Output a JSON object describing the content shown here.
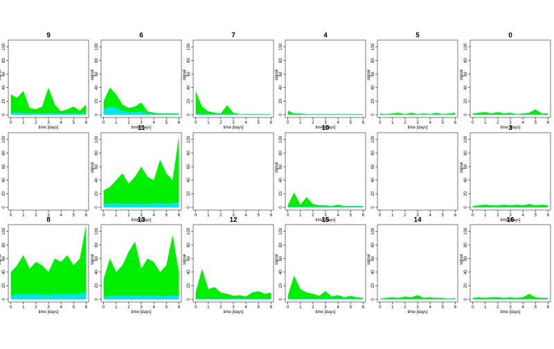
{
  "chart_data": [
    {
      "type": "area",
      "title": "9",
      "xlabel": "time [days]",
      "ylabel": "signal",
      "x": [
        0,
        0.5,
        1,
        1.5,
        2,
        2.5,
        3,
        3.5,
        4,
        4.5,
        5,
        5.5,
        6
      ],
      "series": [
        {
          "color": "#00ee00",
          "values": [
            30,
            25,
            35,
            10,
            8,
            12,
            40,
            15,
            5,
            8,
            12,
            6,
            15
          ]
        },
        {
          "color": "#00e5ee",
          "values": [
            3,
            3,
            3,
            2,
            2,
            2,
            3,
            2,
            2,
            2,
            2,
            2,
            2
          ]
        }
      ],
      "xlim": [
        -0.2,
        6.2
      ],
      "ylim": [
        -4,
        110
      ],
      "xticks": [
        0,
        1,
        2,
        3,
        4,
        5,
        6
      ],
      "yticks": [
        0,
        20,
        40,
        60,
        80,
        100
      ]
    },
    {
      "type": "area",
      "title": "6",
      "xlabel": "time [days]",
      "ylabel": "signal",
      "x": [
        0,
        0.5,
        1,
        1.5,
        2,
        2.5,
        3,
        3.5,
        4,
        4.5,
        5,
        5.5,
        6
      ],
      "series": [
        {
          "color": "#00ee00",
          "values": [
            20,
            40,
            30,
            15,
            10,
            12,
            18,
            5,
            3,
            2,
            2,
            2,
            2
          ]
        },
        {
          "color": "#00e5ee",
          "values": [
            8,
            12,
            10,
            6,
            4,
            4,
            5,
            2,
            1,
            1,
            1,
            1,
            1
          ]
        }
      ],
      "xlim": [
        -0.2,
        6.2
      ],
      "ylim": [
        -4,
        110
      ],
      "xticks": [
        0,
        1,
        2,
        3,
        4,
        5,
        6
      ],
      "yticks": [
        0,
        20,
        40,
        60,
        80,
        100
      ]
    },
    {
      "type": "area",
      "title": "7",
      "xlabel": "time [days]",
      "ylabel": "signal",
      "x": [
        0,
        0.5,
        1,
        1.5,
        2,
        2.5,
        3,
        3.5,
        4,
        4.5,
        5,
        5.5,
        6
      ],
      "series": [
        {
          "color": "#00ee00",
          "values": [
            35,
            12,
            5,
            3,
            2,
            14,
            3,
            1,
            1,
            1,
            1,
            1,
            1
          ]
        },
        {
          "color": "#00e5ee",
          "values": [
            2,
            1,
            1,
            1,
            1,
            1,
            1,
            0.5,
            0.5,
            0.5,
            0.5,
            0.5,
            0.5
          ]
        }
      ],
      "xlim": [
        -0.2,
        6.2
      ],
      "ylim": [
        -4,
        110
      ],
      "xticks": [
        0,
        1,
        2,
        3,
        4,
        5,
        6
      ],
      "yticks": [
        0,
        20,
        40,
        60,
        80,
        100
      ]
    },
    {
      "type": "area",
      "title": "4",
      "xlabel": "time [days]",
      "ylabel": "signal",
      "x": [
        0,
        0.5,
        1,
        1.5,
        2,
        2.5,
        3,
        3.5,
        4,
        4.5,
        5,
        5.5,
        6
      ],
      "series": [
        {
          "color": "#00ee00",
          "values": [
            6,
            2,
            2,
            1,
            1,
            1,
            1,
            1,
            1,
            1,
            1,
            1,
            1
          ]
        },
        {
          "color": "#00e5ee",
          "values": [
            0.5,
            0.5,
            0.5,
            0.5,
            0.5,
            0.5,
            0.5,
            0.5,
            0.5,
            0.5,
            0.5,
            0.5,
            0.5
          ]
        }
      ],
      "xlim": [
        -0.2,
        6.2
      ],
      "ylim": [
        -4,
        110
      ],
      "xticks": [
        0,
        1,
        2,
        3,
        4,
        5,
        6
      ],
      "yticks": [
        0,
        20,
        40,
        60,
        80,
        100
      ]
    },
    {
      "type": "area",
      "title": "5",
      "xlabel": "time [days]",
      "ylabel": "signal",
      "x": [
        0,
        0.5,
        1,
        1.5,
        2,
        2.5,
        3,
        3.5,
        4,
        4.5,
        5,
        5.5,
        6
      ],
      "series": [
        {
          "color": "#00ee00",
          "values": [
            2,
            1,
            2,
            3,
            1,
            3,
            1,
            2,
            1,
            3,
            1,
            2,
            3
          ]
        },
        {
          "color": "#00e5ee",
          "values": [
            0.5,
            0.5,
            0.5,
            0.5,
            0.5,
            0.5,
            0.5,
            0.5,
            0.5,
            0.5,
            0.5,
            0.5,
            0.5
          ]
        }
      ],
      "xlim": [
        -0.2,
        6.2
      ],
      "ylim": [
        -4,
        110
      ],
      "xticks": [
        0,
        1,
        2,
        3,
        4,
        5,
        6
      ],
      "yticks": [
        0,
        20,
        40,
        60,
        80,
        100
      ]
    },
    {
      "type": "area",
      "title": "0",
      "xlabel": "time [days]",
      "ylabel": "signal",
      "x": [
        0,
        0.5,
        1,
        1.5,
        2,
        2.5,
        3,
        3.5,
        4,
        4.5,
        5,
        5.5,
        6
      ],
      "series": [
        {
          "color": "#00ee00",
          "values": [
            2,
            3,
            4,
            2,
            4,
            2,
            3,
            1,
            2,
            3,
            8,
            2,
            2
          ]
        },
        {
          "color": "#00e5ee",
          "values": [
            0.5,
            0.5,
            0.5,
            0.5,
            0.5,
            0.5,
            0.5,
            0.5,
            0.5,
            0.5,
            0.5,
            0.5,
            0.5
          ]
        }
      ],
      "xlim": [
        -0.2,
        6.2
      ],
      "ylim": [
        -4,
        110
      ],
      "xticks": [
        0,
        1,
        2,
        3,
        4,
        5,
        6
      ],
      "yticks": [
        0,
        20,
        40,
        60,
        80,
        100
      ]
    },
    {
      "type": "area",
      "xlim": [
        -0.2,
        6.2
      ],
      "ylim": [
        -4,
        110
      ],
      "xticks": [
        0,
        1,
        2,
        3,
        4,
        5,
        6
      ],
      "yticks": [
        0,
        20,
        40,
        60,
        80,
        100
      ]
    },
    {
      "type": "area",
      "title": "11",
      "xlabel": "time [days]",
      "ylabel": "signal",
      "x": [
        0,
        0.5,
        1,
        1.5,
        2,
        2.5,
        3,
        3.5,
        4,
        4.5,
        5,
        5.5,
        6
      ],
      "series": [
        {
          "color": "#00ee00",
          "values": [
            25,
            30,
            40,
            50,
            35,
            45,
            60,
            45,
            40,
            70,
            50,
            40,
            105
          ]
        },
        {
          "color": "#00e5ee",
          "values": [
            5,
            5,
            6,
            5,
            5,
            6,
            5,
            5,
            6,
            6,
            5,
            6,
            8
          ]
        }
      ],
      "xlim": [
        -0.2,
        6.2
      ],
      "ylim": [
        -4,
        110
      ],
      "xticks": [
        0,
        1,
        2,
        3,
        4,
        5,
        6
      ],
      "yticks": [
        0,
        20,
        40,
        60,
        80,
        100
      ]
    },
    {
      "type": "area",
      "xlim": [
        -0.2,
        6.2
      ],
      "ylim": [
        -4,
        110
      ],
      "xticks": [
        0,
        1,
        2,
        3,
        4,
        5,
        6
      ],
      "yticks": [
        0,
        20,
        40,
        60,
        80,
        100
      ]
    },
    {
      "type": "area",
      "title": "10",
      "xlabel": "time [days]",
      "ylabel": "signal",
      "x": [
        0,
        0.5,
        1,
        1.5,
        2,
        2.5,
        3,
        3.5,
        4,
        4.5,
        5,
        5.5,
        6
      ],
      "series": [
        {
          "color": "#00ee00",
          "values": [
            3,
            22,
            4,
            15,
            5,
            3,
            3,
            2,
            4,
            2,
            2,
            2,
            2
          ]
        },
        {
          "color": "#00e5ee",
          "values": [
            1,
            1,
            1,
            1,
            1,
            1,
            1,
            1,
            1,
            1,
            1,
            1,
            1
          ]
        }
      ],
      "xlim": [
        -0.2,
        6.2
      ],
      "ylim": [
        -4,
        110
      ],
      "xticks": [
        0,
        1,
        2,
        3,
        4,
        5,
        6
      ],
      "yticks": [
        0,
        20,
        40,
        60,
        80,
        100
      ]
    },
    {
      "type": "area",
      "xlim": [
        -0.2,
        6.2
      ],
      "ylim": [
        -4,
        110
      ],
      "xticks": [
        0,
        1,
        2,
        3,
        4,
        5,
        6
      ],
      "yticks": [
        0,
        20,
        40,
        60,
        80,
        100
      ]
    },
    {
      "type": "area",
      "title": "3",
      "xlabel": "time [days]",
      "ylabel": "signal",
      "x": [
        0,
        0.5,
        1,
        1.5,
        2,
        2.5,
        3,
        3.5,
        4,
        4.5,
        5,
        5.5,
        6
      ],
      "series": [
        {
          "color": "#00ee00",
          "values": [
            2,
            3,
            4,
            3,
            3,
            4,
            3,
            4,
            3,
            5,
            3,
            4,
            3
          ]
        },
        {
          "color": "#00e5ee",
          "values": [
            0.5,
            0.5,
            0.5,
            0.5,
            0.5,
            0.5,
            0.5,
            0.5,
            0.5,
            0.5,
            0.5,
            0.5,
            0.5
          ]
        }
      ],
      "xlim": [
        -0.2,
        6.2
      ],
      "ylim": [
        -4,
        110
      ],
      "xticks": [
        0,
        1,
        2,
        3,
        4,
        5,
        6
      ],
      "yticks": [
        0,
        20,
        40,
        60,
        80,
        100
      ]
    },
    {
      "type": "area",
      "title": "8",
      "xlabel": "time [days]",
      "ylabel": "signal",
      "x": [
        0,
        0.5,
        1,
        1.5,
        2,
        2.5,
        3,
        3.5,
        4,
        4.5,
        5,
        5.5,
        6
      ],
      "series": [
        {
          "color": "#00ee00",
          "values": [
            40,
            50,
            65,
            45,
            55,
            50,
            40,
            60,
            55,
            65,
            50,
            60,
            110
          ]
        },
        {
          "color": "#00e5ee",
          "values": [
            6,
            7,
            8,
            7,
            8,
            7,
            6,
            8,
            7,
            8,
            7,
            8,
            10
          ]
        }
      ],
      "xlim": [
        -0.2,
        6.2
      ],
      "ylim": [
        -4,
        110
      ],
      "xticks": [
        0,
        1,
        2,
        3,
        4,
        5,
        6
      ],
      "yticks": [
        0,
        20,
        40,
        60,
        80,
        100
      ]
    },
    {
      "type": "area",
      "title": "13",
      "xlabel": "time [days]",
      "ylabel": "signal",
      "x": [
        0,
        0.5,
        1,
        1.5,
        2,
        2.5,
        3,
        3.5,
        4,
        4.5,
        5,
        5.5,
        6
      ],
      "series": [
        {
          "color": "#00ee00",
          "values": [
            30,
            60,
            40,
            50,
            70,
            85,
            45,
            60,
            55,
            40,
            50,
            95,
            40
          ]
        },
        {
          "color": "#00e5ee",
          "values": [
            4,
            5,
            5,
            6,
            5,
            6,
            5,
            5,
            6,
            5,
            5,
            6,
            5
          ]
        }
      ],
      "xlim": [
        -0.2,
        6.2
      ],
      "ylim": [
        -4,
        110
      ],
      "xticks": [
        0,
        1,
        2,
        3,
        4,
        5,
        6
      ],
      "yticks": [
        0,
        20,
        40,
        60,
        80,
        100
      ]
    },
    {
      "type": "area",
      "title": "12",
      "xlabel": "time [days]",
      "ylabel": "signal",
      "x": [
        0,
        0.5,
        1,
        1.5,
        2,
        2.5,
        3,
        3.5,
        4,
        4.5,
        5,
        5.5,
        6
      ],
      "series": [
        {
          "color": "#00ee00",
          "values": [
            10,
            45,
            15,
            18,
            10,
            8,
            5,
            6,
            4,
            10,
            12,
            8,
            10
          ]
        },
        {
          "color": "#00e5ee",
          "values": [
            1,
            1,
            1,
            1,
            1,
            1,
            1,
            1,
            1,
            1,
            1,
            1,
            1
          ]
        }
      ],
      "xlim": [
        -0.2,
        6.2
      ],
      "ylim": [
        -4,
        110
      ],
      "xticks": [
        0,
        1,
        2,
        3,
        4,
        5,
        6
      ],
      "yticks": [
        0,
        20,
        40,
        60,
        80,
        100
      ]
    },
    {
      "type": "area",
      "title": "15",
      "xlabel": "time [days]",
      "ylabel": "signal",
      "x": [
        0,
        0.5,
        1,
        1.5,
        2,
        2.5,
        3,
        3.5,
        4,
        4.5,
        5,
        5.5,
        6
      ],
      "series": [
        {
          "color": "#00ee00",
          "values": [
            5,
            35,
            15,
            10,
            8,
            5,
            12,
            4,
            6,
            3,
            5,
            3,
            2
          ]
        },
        {
          "color": "#00e5ee",
          "values": [
            1,
            1,
            1,
            1,
            1,
            1,
            1,
            1,
            1,
            1,
            1,
            1,
            1
          ]
        }
      ],
      "xlim": [
        -0.2,
        6.2
      ],
      "ylim": [
        -4,
        110
      ],
      "xticks": [
        0,
        1,
        2,
        3,
        4,
        5,
        6
      ],
      "yticks": [
        0,
        20,
        40,
        60,
        80,
        100
      ]
    },
    {
      "type": "area",
      "title": "14",
      "xlabel": "time [days]",
      "ylabel": "signal",
      "x": [
        0,
        0.5,
        1,
        1.5,
        2,
        2.5,
        3,
        3.5,
        4,
        4.5,
        5,
        5.5,
        6
      ],
      "series": [
        {
          "color": "#00ee00",
          "values": [
            1,
            2,
            3,
            2,
            4,
            3,
            6,
            2,
            3,
            2,
            2,
            1,
            2
          ]
        },
        {
          "color": "#00e5ee",
          "values": [
            0.5,
            0.5,
            0.5,
            0.5,
            0.5,
            0.5,
            0.5,
            0.5,
            0.5,
            0.5,
            0.5,
            0.5,
            0.5
          ]
        }
      ],
      "xlim": [
        -0.2,
        6.2
      ],
      "ylim": [
        -4,
        110
      ],
      "xticks": [
        0,
        1,
        2,
        3,
        4,
        5,
        6
      ],
      "yticks": [
        0,
        20,
        40,
        60,
        80,
        100
      ]
    },
    {
      "type": "area",
      "title": "16",
      "xlabel": "time [days]",
      "ylabel": "signal",
      "x": [
        0,
        0.5,
        1,
        1.5,
        2,
        2.5,
        3,
        3.5,
        4,
        4.5,
        5,
        5.5,
        6
      ],
      "series": [
        {
          "color": "#00ee00",
          "values": [
            2,
            3,
            2,
            3,
            3,
            2,
            3,
            2,
            3,
            8,
            3,
            2,
            2
          ]
        },
        {
          "color": "#00e5ee",
          "values": [
            0.5,
            0.5,
            0.5,
            0.5,
            0.5,
            0.5,
            0.5,
            0.5,
            0.5,
            0.5,
            0.5,
            0.5,
            0.5
          ]
        }
      ],
      "xlim": [
        -0.2,
        6.2
      ],
      "ylim": [
        -4,
        110
      ],
      "xticks": [
        0,
        1,
        2,
        3,
        4,
        5,
        6
      ],
      "yticks": [
        0,
        20,
        40,
        60,
        80,
        100
      ]
    }
  ]
}
